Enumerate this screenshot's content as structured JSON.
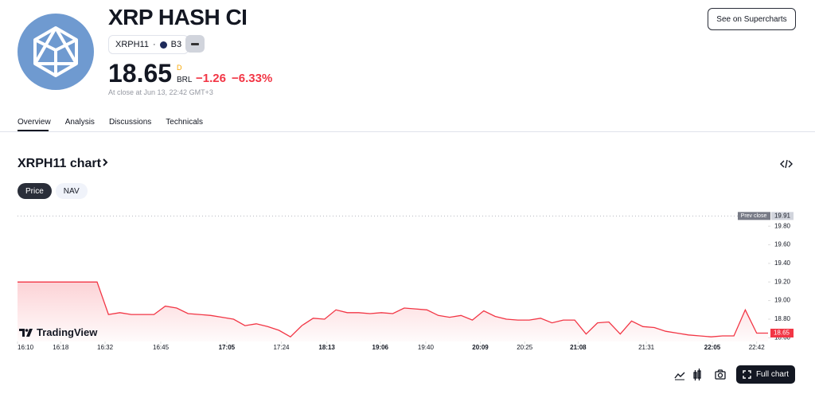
{
  "header": {
    "title": "XRP HASH CI",
    "ticker": "XRPH11",
    "exchange": "B3",
    "price": "18.65",
    "price_flag": "D",
    "currency": "BRL",
    "change": "−1.26",
    "change_percent": "−6.33%",
    "close_note": "At close at Jun 13, 22:42 GMT+3",
    "button": "See on Supercharts"
  },
  "tabs": [
    "Overview",
    "Analysis",
    "Discussions",
    "Technicals"
  ],
  "chart_section": {
    "heading": "XRPH11 chart",
    "toggles": [
      "Price",
      "NAV"
    ],
    "watermark": "TradingView",
    "full_chart": "Full chart"
  },
  "chart_data": {
    "type": "line",
    "color": "#f23645",
    "values": [
      19.2,
      19.2,
      19.2,
      19.2,
      19.2,
      19.2,
      19.2,
      19.2,
      18.85,
      18.87,
      18.85,
      18.85,
      18.85,
      18.94,
      18.92,
      18.86,
      18.85,
      18.84,
      18.82,
      18.8,
      18.73,
      18.75,
      18.72,
      18.68,
      18.61,
      18.73,
      18.81,
      18.8,
      18.9,
      18.87,
      18.87,
      18.86,
      18.87,
      18.86,
      18.92,
      18.91,
      18.9,
      18.84,
      18.82,
      18.84,
      18.79,
      18.89,
      18.83,
      18.8,
      18.79,
      18.79,
      18.81,
      18.76,
      18.79,
      18.79,
      18.64,
      18.76,
      18.77,
      18.64,
      18.78,
      18.72,
      18.71,
      18.67,
      18.65,
      18.63,
      18.62,
      18.61,
      18.62,
      18.62,
      18.9,
      18.65,
      18.65
    ],
    "xlim": [
      0,
      66
    ],
    "xticks": [
      {
        "value": 0,
        "label": "16:10"
      },
      {
        "value": 3.8,
        "label": "16:18"
      },
      {
        "value": 7.7,
        "label": "16:32"
      },
      {
        "value": 12.6,
        "label": "16:45"
      },
      {
        "value": 18.4,
        "label": "17:05",
        "bold": true
      },
      {
        "value": 23.2,
        "label": "17:24"
      },
      {
        "value": 27.2,
        "label": "18:13",
        "bold": true
      },
      {
        "value": 31.9,
        "label": "19:06",
        "bold": true
      },
      {
        "value": 35.9,
        "label": "19:40"
      },
      {
        "value": 40.7,
        "label": "20:09",
        "bold": true
      },
      {
        "value": 44.6,
        "label": "20:25"
      },
      {
        "value": 49.3,
        "label": "21:08",
        "bold": true
      },
      {
        "value": 55.3,
        "label": "21:31"
      },
      {
        "value": 61.1,
        "label": "22:05",
        "bold": true
      },
      {
        "value": 65,
        "label": "22:42"
      }
    ],
    "ylim": [
      18.56,
      19.93
    ],
    "yticks": [
      {
        "value": 18.6,
        "label": "18.60"
      },
      {
        "value": 18.8,
        "label": "18.80"
      },
      {
        "value": 19.0,
        "label": "19.00"
      },
      {
        "value": 19.2,
        "label": "19.20"
      },
      {
        "value": 19.4,
        "label": "19.40"
      },
      {
        "value": 19.6,
        "label": "19.60"
      },
      {
        "value": 19.8,
        "label": "19.80"
      }
    ],
    "prev_close": {
      "name": "Prev close",
      "value": 19.91,
      "label": "19.91"
    }
  }
}
